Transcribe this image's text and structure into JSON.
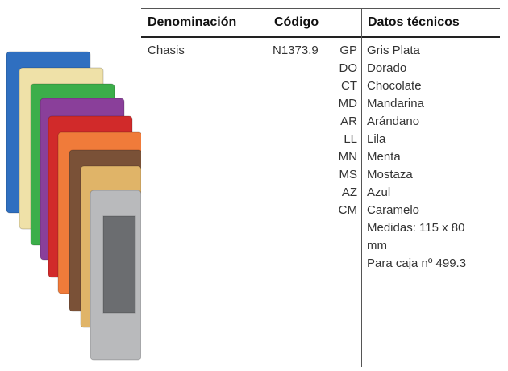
{
  "table": {
    "headers": [
      "Denominación",
      "Código",
      "Datos técnicos"
    ],
    "row": {
      "name": "Chasis",
      "code": "N1373.9",
      "variants": [
        {
          "code": "GP",
          "label": "Gris Plata"
        },
        {
          "code": "DO",
          "label": "Dorado"
        },
        {
          "code": "CT",
          "label": "Chocolate"
        },
        {
          "code": "MD",
          "label": "Mandarina"
        },
        {
          "code": "AR",
          "label": "Arándano"
        },
        {
          "code": "LL",
          "label": "Lila"
        },
        {
          "code": "MN",
          "label": "Menta"
        },
        {
          "code": "MS",
          "label": "Mostaza"
        },
        {
          "code": "AZ",
          "label": "Azul"
        },
        {
          "code": "CM",
          "label": "Caramelo"
        }
      ],
      "notes": [
        "Medidas: 115 x 80 mm",
        "Para caja nº 499.3"
      ]
    }
  }
}
